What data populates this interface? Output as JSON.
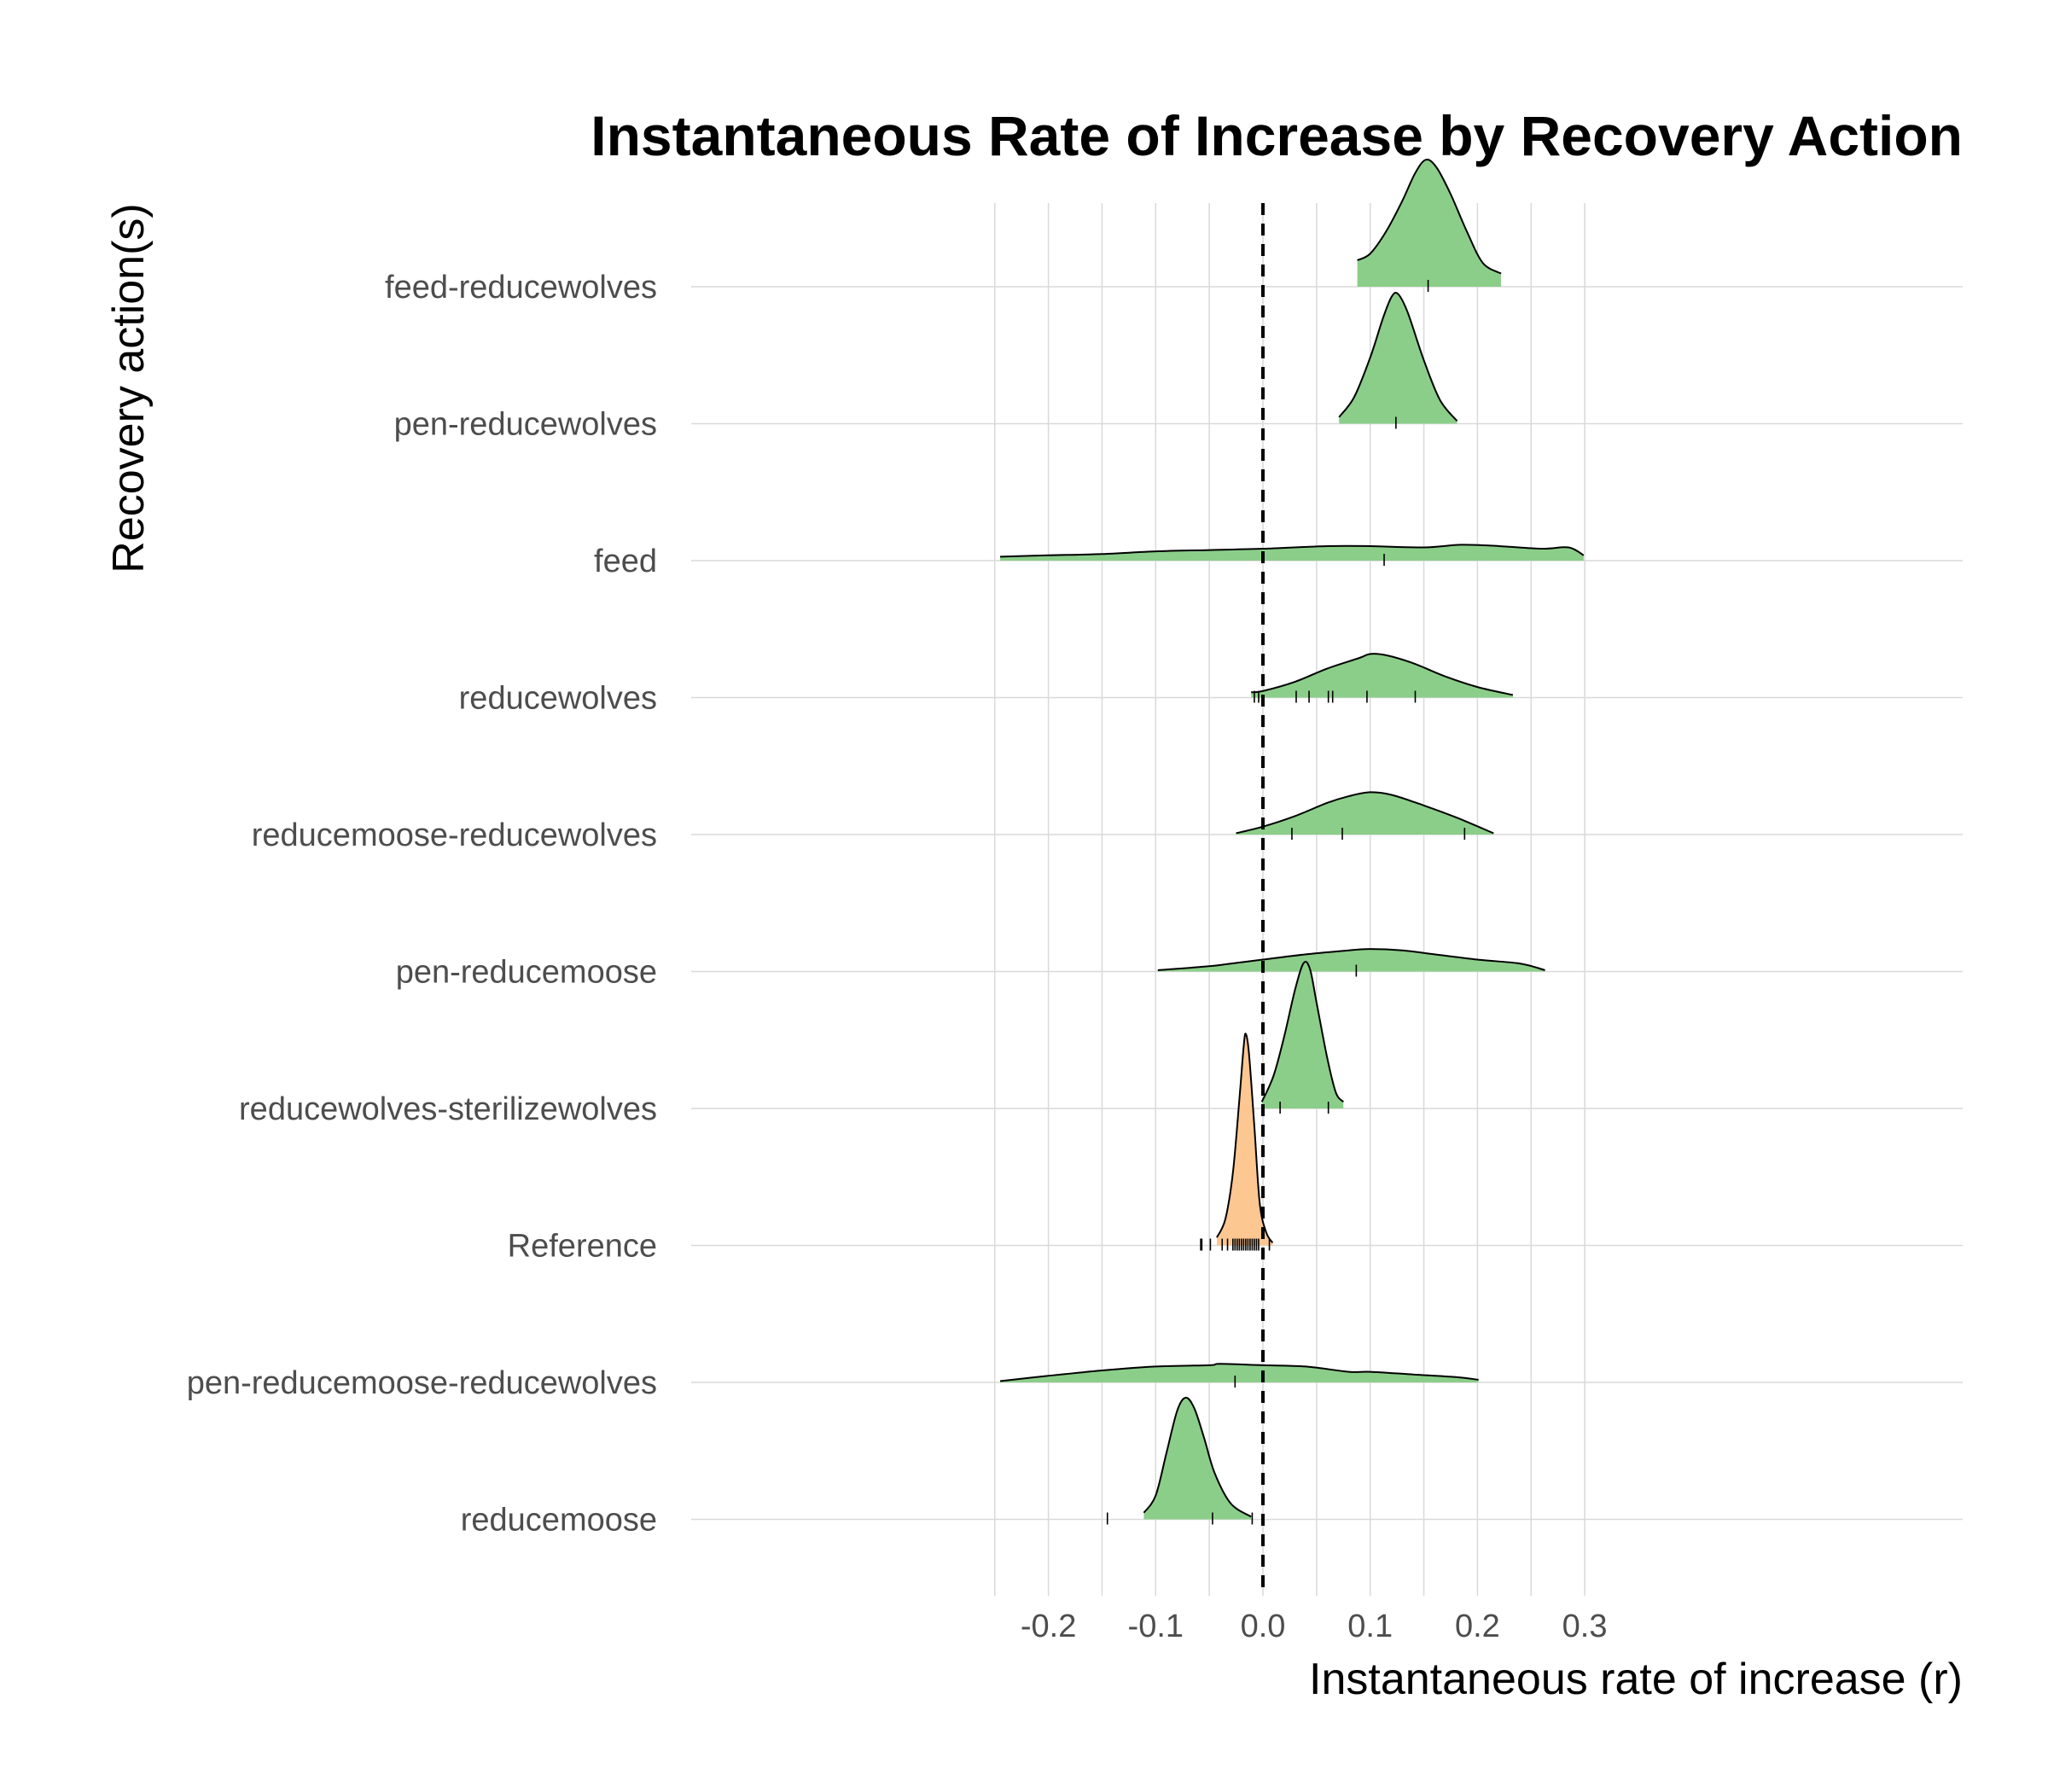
{
  "chart_data": {
    "type": "ridgeline",
    "title": "Instantaneous Rate of Increase by Recovery Action",
    "xlabel": "Instantaneous rate of increase (r)",
    "ylabel": "Recovery action(s)",
    "xlim": [
      -0.25,
      0.3
    ],
    "xticks": [
      -0.2,
      -0.1,
      0.0,
      0.1,
      0.2,
      0.3
    ],
    "xtick_labels": [
      "-0.2",
      "-0.1",
      "0.0",
      "0.1",
      "0.2",
      "0.3"
    ],
    "reference_line_x": 0.0,
    "grid": true,
    "colors": {
      "treatment": "#8bce89",
      "reference": "#fdc792",
      "outline": "#000000"
    },
    "categories": [
      "feed-reducewolves",
      "pen-reducewolves",
      "feed",
      "reducewolves",
      "reducemoose-reducewolves",
      "pen-reducemoose",
      "reducewolves-sterilizewolves",
      "Reference",
      "pen-reducemoose-reducewolves",
      "reducemoose"
    ],
    "series": [
      {
        "category": "feed-reducewolves",
        "group": "treatment",
        "range": [
          0.088,
          0.222
        ],
        "density": [
          [
            0.088,
            0.2
          ],
          [
            0.1,
            0.25
          ],
          [
            0.115,
            0.42
          ],
          [
            0.13,
            0.65
          ],
          [
            0.142,
            0.86
          ],
          [
            0.152,
            0.96
          ],
          [
            0.162,
            0.9
          ],
          [
            0.175,
            0.7
          ],
          [
            0.19,
            0.42
          ],
          [
            0.205,
            0.18
          ],
          [
            0.222,
            0.1
          ]
        ],
        "observations": [
          0.154
        ]
      },
      {
        "category": "pen-reducewolves",
        "group": "treatment",
        "range": [
          0.071,
          0.181
        ],
        "density": [
          [
            0.071,
            0.05
          ],
          [
            0.085,
            0.2
          ],
          [
            0.1,
            0.5
          ],
          [
            0.112,
            0.8
          ],
          [
            0.12,
            0.96
          ],
          [
            0.126,
            0.98
          ],
          [
            0.135,
            0.84
          ],
          [
            0.15,
            0.48
          ],
          [
            0.165,
            0.18
          ],
          [
            0.181,
            0.02
          ]
        ],
        "observations": [
          0.124
        ]
      },
      {
        "category": "feed",
        "group": "treatment",
        "range": [
          -0.245,
          0.299
        ],
        "density": [
          [
            -0.245,
            0.03
          ],
          [
            -0.2,
            0.04
          ],
          [
            -0.15,
            0.05
          ],
          [
            -0.1,
            0.07
          ],
          [
            -0.05,
            0.08
          ],
          [
            0.0,
            0.09
          ],
          [
            0.06,
            0.11
          ],
          [
            0.1,
            0.11
          ],
          [
            0.15,
            0.1
          ],
          [
            0.185,
            0.12
          ],
          [
            0.22,
            0.11
          ],
          [
            0.26,
            0.09
          ],
          [
            0.285,
            0.1
          ],
          [
            0.299,
            0.04
          ]
        ],
        "observations": [
          0.113
        ]
      },
      {
        "category": "reducewolves",
        "group": "treatment",
        "range": [
          -0.011,
          0.233
        ],
        "density": [
          [
            -0.011,
            0.04
          ],
          [
            0.0,
            0.05
          ],
          [
            0.03,
            0.12
          ],
          [
            0.06,
            0.22
          ],
          [
            0.09,
            0.3
          ],
          [
            0.1,
            0.33
          ],
          [
            0.115,
            0.32
          ],
          [
            0.14,
            0.26
          ],
          [
            0.17,
            0.16
          ],
          [
            0.2,
            0.08
          ],
          [
            0.233,
            0.02
          ]
        ],
        "observations": [
          -0.008,
          -0.004,
          0.031,
          0.043,
          0.061,
          0.065,
          0.097,
          0.142
        ]
      },
      {
        "category": "reducemoose-reducewolves",
        "group": "treatment",
        "range": [
          -0.025,
          0.215
        ],
        "density": [
          [
            -0.025,
            0.01
          ],
          [
            0.0,
            0.06
          ],
          [
            0.03,
            0.14
          ],
          [
            0.06,
            0.24
          ],
          [
            0.08,
            0.29
          ],
          [
            0.1,
            0.32
          ],
          [
            0.12,
            0.3
          ],
          [
            0.15,
            0.22
          ],
          [
            0.18,
            0.13
          ],
          [
            0.215,
            0.01
          ]
        ],
        "observations": [
          0.027,
          0.074,
          0.188
        ]
      },
      {
        "category": "pen-reducemoose",
        "group": "treatment",
        "range": [
          -0.098,
          0.263
        ],
        "density": [
          [
            -0.098,
            0.01
          ],
          [
            -0.05,
            0.04
          ],
          [
            -0.03,
            0.06
          ],
          [
            0.0,
            0.09
          ],
          [
            0.04,
            0.13
          ],
          [
            0.08,
            0.16
          ],
          [
            0.1,
            0.17
          ],
          [
            0.13,
            0.16
          ],
          [
            0.16,
            0.13
          ],
          [
            0.2,
            0.09
          ],
          [
            0.24,
            0.06
          ],
          [
            0.263,
            0.01
          ]
        ],
        "observations": [
          0.087
        ]
      },
      {
        "category": "reducewolves-sterilizewolves",
        "group": "treatment",
        "range": [
          -0.001,
          0.075
        ],
        "density": [
          [
            -0.001,
            0.05
          ],
          [
            0.01,
            0.25
          ],
          [
            0.02,
            0.55
          ],
          [
            0.03,
            0.9
          ],
          [
            0.038,
            1.1
          ],
          [
            0.044,
            1.05
          ],
          [
            0.05,
            0.8
          ],
          [
            0.06,
            0.38
          ],
          [
            0.068,
            0.12
          ],
          [
            0.075,
            0.05
          ]
        ],
        "observations": [
          0.016,
          0.061
        ]
      },
      {
        "category": "Reference",
        "group": "reference",
        "range": [
          -0.043,
          0.009
        ],
        "density": [
          [
            -0.043,
            0.06
          ],
          [
            -0.035,
            0.2
          ],
          [
            -0.028,
            0.55
          ],
          [
            -0.022,
            1.1
          ],
          [
            -0.018,
            1.5
          ],
          [
            -0.016,
            1.6
          ],
          [
            -0.013,
            1.45
          ],
          [
            -0.008,
            0.9
          ],
          [
            -0.003,
            0.32
          ],
          [
            0.003,
            0.1
          ],
          [
            0.009,
            0.02
          ]
        ],
        "observations": [
          -0.058,
          -0.057,
          -0.049,
          -0.038,
          -0.033,
          -0.028,
          -0.026,
          -0.024,
          -0.022,
          -0.02,
          -0.018,
          -0.016,
          -0.014,
          -0.012,
          -0.01,
          -0.008,
          -0.006,
          -0.004,
          0.006
        ]
      },
      {
        "category": "pen-reducemoose-reducewolves",
        "group": "treatment",
        "range": [
          -0.245,
          0.201
        ],
        "density": [
          [
            -0.245,
            0.01
          ],
          [
            -0.2,
            0.05
          ],
          [
            -0.15,
            0.09
          ],
          [
            -0.1,
            0.12
          ],
          [
            -0.05,
            0.13
          ],
          [
            -0.04,
            0.14
          ],
          [
            0.0,
            0.13
          ],
          [
            0.04,
            0.12
          ],
          [
            0.08,
            0.08
          ],
          [
            0.1,
            0.08
          ],
          [
            0.14,
            0.06
          ],
          [
            0.18,
            0.04
          ],
          [
            0.201,
            0.02
          ]
        ],
        "observations": [
          -0.026
        ]
      },
      {
        "category": "reducemoose",
        "group": "treatment",
        "range": [
          -0.111,
          -0.011
        ],
        "density": [
          [
            -0.111,
            0.05
          ],
          [
            -0.1,
            0.18
          ],
          [
            -0.09,
            0.5
          ],
          [
            -0.08,
            0.82
          ],
          [
            -0.072,
            0.92
          ],
          [
            -0.064,
            0.84
          ],
          [
            -0.055,
            0.62
          ],
          [
            -0.045,
            0.35
          ],
          [
            -0.03,
            0.12
          ],
          [
            -0.011,
            0.02
          ]
        ],
        "observations": [
          -0.145,
          -0.047,
          -0.01
        ]
      }
    ]
  }
}
